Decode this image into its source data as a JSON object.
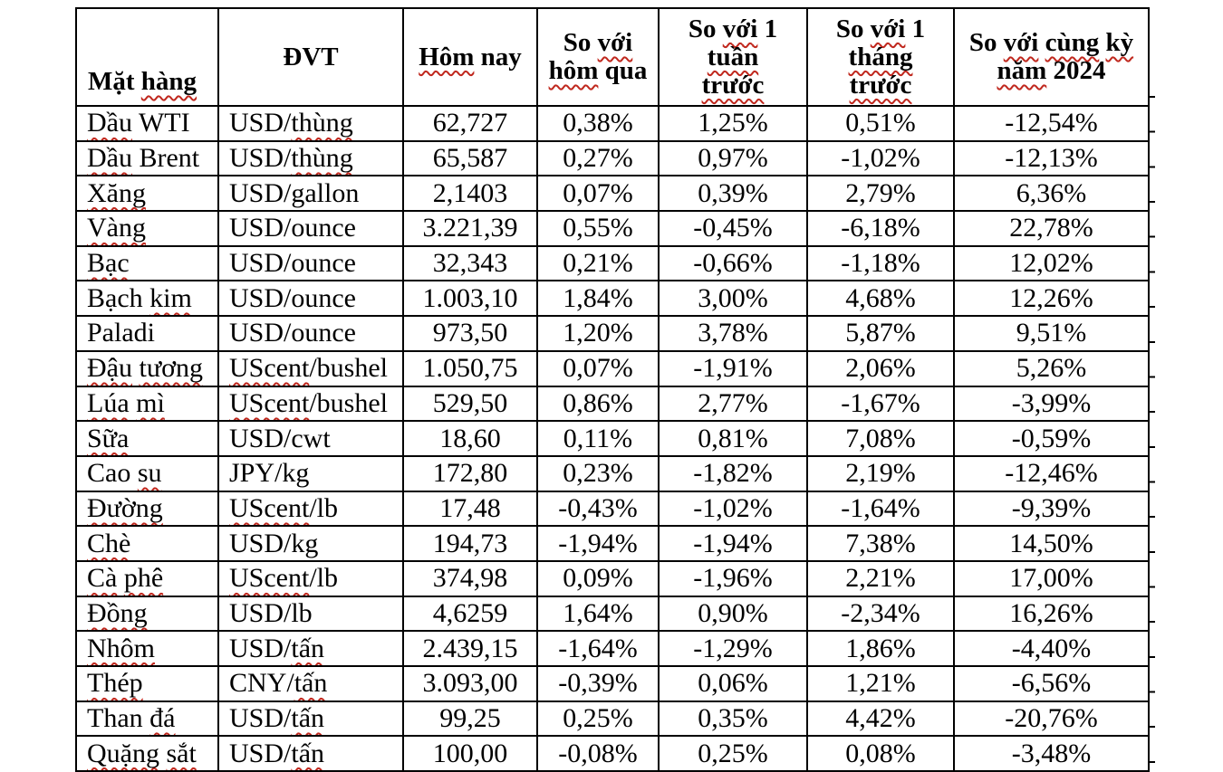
{
  "colors": {
    "background": "#ffffff",
    "text": "#000000",
    "border": "#000000",
    "squiggle": "#c0281e"
  },
  "table": {
    "columns": [
      {
        "id": "name",
        "lines": [
          [
            {
              "t": "Mặt ",
              "sq": false
            },
            {
              "t": "hàng",
              "sq": true
            }
          ]
        ]
      },
      {
        "id": "unit",
        "lines": [
          [
            {
              "t": "ĐVT",
              "sq": false
            }
          ]
        ]
      },
      {
        "id": "today",
        "lines": [
          [
            {
              "t": "Hôm",
              "sq": true
            },
            {
              "t": " nay",
              "sq": false
            }
          ]
        ]
      },
      {
        "id": "vs_yesterday",
        "lines": [
          [
            {
              "t": "So ",
              "sq": false
            },
            {
              "t": "với",
              "sq": true
            }
          ],
          [
            {
              "t": "hôm",
              "sq": true
            },
            {
              "t": " qua",
              "sq": false
            }
          ]
        ]
      },
      {
        "id": "vs_week",
        "lines": [
          [
            {
              "t": "So ",
              "sq": false
            },
            {
              "t": "với",
              "sq": true
            },
            {
              "t": " 1",
              "sq": false
            }
          ],
          [
            {
              "t": "tuần",
              "sq": true
            }
          ],
          [
            {
              "t": "trước",
              "sq": true
            }
          ]
        ]
      },
      {
        "id": "vs_month",
        "lines": [
          [
            {
              "t": "So ",
              "sq": false
            },
            {
              "t": "với",
              "sq": true
            },
            {
              "t": " 1",
              "sq": false
            }
          ],
          [
            {
              "t": "tháng",
              "sq": true
            }
          ],
          [
            {
              "t": "trước",
              "sq": true
            }
          ]
        ]
      },
      {
        "id": "vs_2024",
        "lines": [
          [
            {
              "t": "So ",
              "sq": false
            },
            {
              "t": "với",
              "sq": true
            },
            {
              "t": " ",
              "sq": false
            },
            {
              "t": "cùng",
              "sq": true
            },
            {
              "t": " ",
              "sq": false
            },
            {
              "t": "kỳ",
              "sq": true
            }
          ],
          [
            {
              "t": "năm",
              "sq": true
            },
            {
              "t": " 2024",
              "sq": false
            }
          ]
        ]
      }
    ],
    "rows": [
      {
        "name": [
          {
            "t": "Dầu",
            "sq": true
          },
          {
            "t": " WTI",
            "sq": false
          }
        ],
        "unit": [
          {
            "t": "USD/",
            "sq": false
          },
          {
            "t": "thùng",
            "sq": true
          }
        ],
        "today": "62,727",
        "vs_yesterday": "0,38%",
        "vs_week": "1,25%",
        "vs_month": "0,51%",
        "vs_2024": "-12,54%"
      },
      {
        "name": [
          {
            "t": "Dầu",
            "sq": true
          },
          {
            "t": " Brent",
            "sq": false
          }
        ],
        "unit": [
          {
            "t": "USD/",
            "sq": false
          },
          {
            "t": "thùng",
            "sq": true
          }
        ],
        "today": "65,587",
        "vs_yesterday": "0,27%",
        "vs_week": "0,97%",
        "vs_month": "-1,02%",
        "vs_2024": "-12,13%"
      },
      {
        "name": [
          {
            "t": "Xăng",
            "sq": true
          }
        ],
        "unit": [
          {
            "t": "USD/gallon",
            "sq": false
          }
        ],
        "today": "2,1403",
        "vs_yesterday": "0,07%",
        "vs_week": "0,39%",
        "vs_month": "2,79%",
        "vs_2024": "6,36%"
      },
      {
        "name": [
          {
            "t": "Vàng",
            "sq": true
          }
        ],
        "unit": [
          {
            "t": "USD/ounce",
            "sq": false
          }
        ],
        "today": "3.221,39",
        "vs_yesterday": "0,55%",
        "vs_week": "-0,45%",
        "vs_month": "-6,18%",
        "vs_2024": "22,78%"
      },
      {
        "name": [
          {
            "t": "Bạc",
            "sq": true
          }
        ],
        "unit": [
          {
            "t": "USD/ounce",
            "sq": false
          }
        ],
        "today": "32,343",
        "vs_yesterday": "0,21%",
        "vs_week": "-0,66%",
        "vs_month": "-1,18%",
        "vs_2024": "12,02%"
      },
      {
        "name": [
          {
            "t": "Bạch ",
            "sq": false
          },
          {
            "t": "kim",
            "sq": true
          }
        ],
        "unit": [
          {
            "t": "USD/ounce",
            "sq": false
          }
        ],
        "today": "1.003,10",
        "vs_yesterday": "1,84%",
        "vs_week": "3,00%",
        "vs_month": "4,68%",
        "vs_2024": "12,26%"
      },
      {
        "name": [
          {
            "t": "Paladi",
            "sq": false
          }
        ],
        "unit": [
          {
            "t": "USD/ounce",
            "sq": false
          }
        ],
        "today": "973,50",
        "vs_yesterday": "1,20%",
        "vs_week": "3,78%",
        "vs_month": "5,87%",
        "vs_2024": "9,51%"
      },
      {
        "name": [
          {
            "t": "Đậu",
            "sq": true
          },
          {
            "t": " ",
            "sq": false
          },
          {
            "t": "tương",
            "sq": true
          }
        ],
        "unit": [
          {
            "t": "UScent",
            "sq": true
          },
          {
            "t": "/bushel",
            "sq": false
          }
        ],
        "today": "1.050,75",
        "vs_yesterday": "0,07%",
        "vs_week": "-1,91%",
        "vs_month": "2,06%",
        "vs_2024": "5,26%"
      },
      {
        "name": [
          {
            "t": "Lúa",
            "sq": true
          },
          {
            "t": " ",
            "sq": false
          },
          {
            "t": "mì",
            "sq": true
          }
        ],
        "unit": [
          {
            "t": "UScent",
            "sq": true
          },
          {
            "t": "/bushel",
            "sq": false
          }
        ],
        "today": "529,50",
        "vs_yesterday": "0,86%",
        "vs_week": "2,77%",
        "vs_month": "-1,67%",
        "vs_2024": "-3,99%"
      },
      {
        "name": [
          {
            "t": "Sữa",
            "sq": true
          }
        ],
        "unit": [
          {
            "t": "USD/cwt",
            "sq": false
          }
        ],
        "today": "18,60",
        "vs_yesterday": "0,11%",
        "vs_week": "0,81%",
        "vs_month": "7,08%",
        "vs_2024": "-0,59%"
      },
      {
        "name": [
          {
            "t": "Cao ",
            "sq": false
          },
          {
            "t": "su",
            "sq": true
          }
        ],
        "unit": [
          {
            "t": "JPY/kg",
            "sq": false
          }
        ],
        "today": "172,80",
        "vs_yesterday": "0,23%",
        "vs_week": "-1,82%",
        "vs_month": "2,19%",
        "vs_2024": "-12,46%"
      },
      {
        "name": [
          {
            "t": "Đường",
            "sq": true
          }
        ],
        "unit": [
          {
            "t": "UScent",
            "sq": true
          },
          {
            "t": "/lb",
            "sq": false
          }
        ],
        "today": "17,48",
        "vs_yesterday": "-0,43%",
        "vs_week": "-1,02%",
        "vs_month": "-1,64%",
        "vs_2024": "-9,39%"
      },
      {
        "name": [
          {
            "t": "Chè",
            "sq": true
          }
        ],
        "unit": [
          {
            "t": "USD/kg",
            "sq": false
          }
        ],
        "today": "194,73",
        "vs_yesterday": "-1,94%",
        "vs_week": "-1,94%",
        "vs_month": "7,38%",
        "vs_2024": "14,50%"
      },
      {
        "name": [
          {
            "t": "Cà",
            "sq": true
          },
          {
            "t": " ",
            "sq": false
          },
          {
            "t": "phê",
            "sq": true
          }
        ],
        "unit": [
          {
            "t": "UScent",
            "sq": true
          },
          {
            "t": "/lb",
            "sq": false
          }
        ],
        "today": "374,98",
        "vs_yesterday": "0,09%",
        "vs_week": "-1,96%",
        "vs_month": "2,21%",
        "vs_2024": "17,00%"
      },
      {
        "name": [
          {
            "t": "Đồng",
            "sq": true
          }
        ],
        "unit": [
          {
            "t": "USD/lb",
            "sq": false
          }
        ],
        "today": "4,6259",
        "vs_yesterday": "1,64%",
        "vs_week": "0,90%",
        "vs_month": "-2,34%",
        "vs_2024": "16,26%"
      },
      {
        "name": [
          {
            "t": "Nhôm",
            "sq": true
          }
        ],
        "unit": [
          {
            "t": "USD/",
            "sq": false
          },
          {
            "t": "tấn",
            "sq": true
          }
        ],
        "today": "2.439,15",
        "vs_yesterday": "-1,64%",
        "vs_week": "-1,29%",
        "vs_month": "1,86%",
        "vs_2024": "-4,40%"
      },
      {
        "name": [
          {
            "t": "Thép",
            "sq": true
          }
        ],
        "unit": [
          {
            "t": "CNY/",
            "sq": false
          },
          {
            "t": "tấn",
            "sq": true
          }
        ],
        "today": "3.093,00",
        "vs_yesterday": "-0,39%",
        "vs_week": "0,06%",
        "vs_month": "1,21%",
        "vs_2024": "-6,56%"
      },
      {
        "name": [
          {
            "t": "Than ",
            "sq": false
          },
          {
            "t": "đá",
            "sq": true
          }
        ],
        "unit": [
          {
            "t": "USD/",
            "sq": false
          },
          {
            "t": "tấn",
            "sq": true
          }
        ],
        "today": "99,25",
        "vs_yesterday": "0,25%",
        "vs_week": "0,35%",
        "vs_month": "4,42%",
        "vs_2024": "-20,76%"
      },
      {
        "name": [
          {
            "t": "Quặng",
            "sq": true
          },
          {
            "t": " ",
            "sq": false
          },
          {
            "t": "sắt",
            "sq": true
          }
        ],
        "unit": [
          {
            "t": "USD/",
            "sq": false
          },
          {
            "t": "tấn",
            "sq": true
          }
        ],
        "today": "100,00",
        "vs_yesterday": "-0,08%",
        "vs_week": "0,25%",
        "vs_month": "0,08%",
        "vs_2024": "-3,48%"
      }
    ]
  }
}
